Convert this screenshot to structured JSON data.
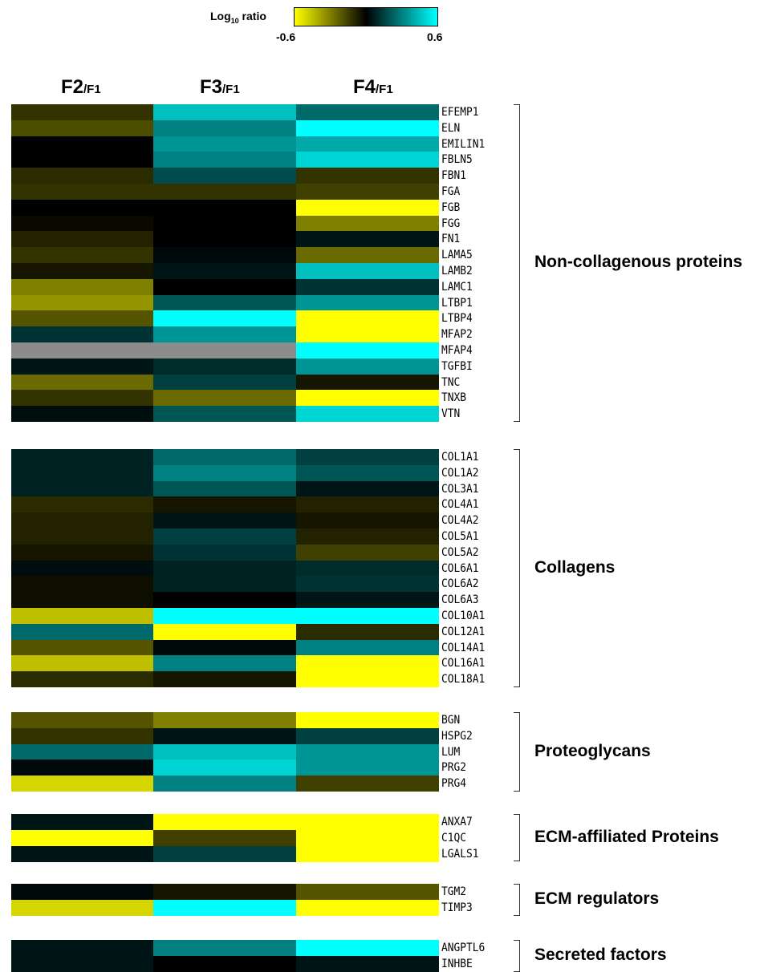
{
  "legend": {
    "title_main": "Log",
    "title_sub": "10",
    "title_rest": " ratio",
    "min_label": "-0.6",
    "max_label": "0.6",
    "colors": {
      "low": "#ffff00",
      "mid": "#000000",
      "high": "#00ffff",
      "missing": "#8c8c8c"
    }
  },
  "chart_data": {
    "type": "heatmap",
    "value_range": [
      -0.6,
      0.6
    ],
    "columns": [
      {
        "main": "F2",
        "sub": "/F1"
      },
      {
        "main": "F3",
        "sub": "/F1"
      },
      {
        "main": "F4",
        "sub": "/F1"
      }
    ],
    "groups": [
      {
        "name": "Non-collagenous proteins",
        "rows": [
          {
            "gene": "EFEMP1",
            "values": [
              -0.12,
              0.45,
              0.25
            ]
          },
          {
            "gene": "ELN",
            "values": [
              -0.18,
              0.3,
              0.6
            ]
          },
          {
            "gene": "EMILIN1",
            "values": [
              0.0,
              0.35,
              0.4
            ]
          },
          {
            "gene": "FBLN5",
            "values": [
              0.0,
              0.3,
              0.5
            ]
          },
          {
            "gene": "FBN1",
            "values": [
              -0.1,
              0.18,
              -0.12
            ]
          },
          {
            "gene": "FGA",
            "values": [
              -0.12,
              -0.12,
              -0.15
            ]
          },
          {
            "gene": "FGB",
            "values": [
              0.0,
              0.0,
              -0.6
            ]
          },
          {
            "gene": "FGG",
            "values": [
              -0.02,
              0.0,
              -0.3
            ]
          },
          {
            "gene": "FN1",
            "values": [
              -0.08,
              0.0,
              0.05
            ]
          },
          {
            "gene": "LAMA5",
            "values": [
              -0.12,
              0.02,
              -0.25
            ]
          },
          {
            "gene": "LAMB2",
            "values": [
              -0.05,
              0.05,
              0.45
            ]
          },
          {
            "gene": "LAMC1",
            "values": [
              -0.3,
              0.0,
              0.12
            ]
          },
          {
            "gene": "LTBP1",
            "values": [
              -0.35,
              0.2,
              0.35
            ]
          },
          {
            "gene": "LTBP4",
            "values": [
              -0.2,
              0.6,
              -0.6
            ]
          },
          {
            "gene": "MFAP2",
            "values": [
              0.12,
              0.35,
              -0.6
            ]
          },
          {
            "gene": "MFAP4",
            "values": [
              null,
              null,
              0.6
            ]
          },
          {
            "gene": "TGFBI",
            "values": [
              0.05,
              0.1,
              0.35
            ]
          },
          {
            "gene": "TNC",
            "values": [
              -0.25,
              0.15,
              -0.05
            ]
          },
          {
            "gene": "TNXB",
            "values": [
              -0.12,
              -0.25,
              -0.6
            ]
          },
          {
            "gene": "VTN",
            "values": [
              0.03,
              0.2,
              0.5
            ]
          }
        ]
      },
      {
        "name": "Collagens",
        "rows": [
          {
            "gene": "COL1A1",
            "values": [
              0.08,
              0.25,
              0.15
            ]
          },
          {
            "gene": "COL1A2",
            "values": [
              0.08,
              0.3,
              0.2
            ]
          },
          {
            "gene": "COL3A1",
            "values": [
              0.08,
              0.2,
              0.05
            ]
          },
          {
            "gene": "COL4A1",
            "values": [
              -0.1,
              -0.05,
              -0.08
            ]
          },
          {
            "gene": "COL4A2",
            "values": [
              -0.08,
              0.05,
              -0.05
            ]
          },
          {
            "gene": "COL5A1",
            "values": [
              -0.08,
              0.15,
              -0.08
            ]
          },
          {
            "gene": "COL5A2",
            "values": [
              -0.05,
              0.12,
              -0.15
            ]
          },
          {
            "gene": "COL6A1",
            "values": [
              0.03,
              0.08,
              0.1
            ]
          },
          {
            "gene": "COL6A2",
            "values": [
              -0.03,
              0.08,
              0.12
            ]
          },
          {
            "gene": "COL6A3",
            "values": [
              -0.03,
              0.0,
              0.05
            ]
          },
          {
            "gene": "COL10A1",
            "values": [
              -0.45,
              0.6,
              0.6
            ]
          },
          {
            "gene": "COL12A1",
            "values": [
              0.25,
              -0.6,
              -0.1
            ]
          },
          {
            "gene": "COL14A1",
            "values": [
              -0.2,
              0.02,
              0.3
            ]
          },
          {
            "gene": "COL16A1",
            "values": [
              -0.45,
              0.3,
              -0.6
            ]
          },
          {
            "gene": "COL18A1",
            "values": [
              -0.1,
              -0.05,
              -0.6
            ]
          }
        ]
      },
      {
        "name": "Proteoglycans",
        "rows": [
          {
            "gene": "BGN",
            "values": [
              -0.2,
              -0.3,
              -0.6
            ]
          },
          {
            "gene": "HSPG2",
            "values": [
              -0.12,
              0.05,
              0.15
            ]
          },
          {
            "gene": "LUM",
            "values": [
              0.25,
              0.45,
              0.35
            ]
          },
          {
            "gene": "PRG2",
            "values": [
              0.02,
              0.5,
              0.35
            ]
          },
          {
            "gene": "PRG4",
            "values": [
              -0.5,
              0.3,
              -0.15
            ]
          }
        ]
      },
      {
        "name": "ECM-affiliated Proteins",
        "rows": [
          {
            "gene": "ANXA7",
            "values": [
              0.05,
              -0.6,
              -0.6
            ]
          },
          {
            "gene": "C1QC",
            "values": [
              -0.6,
              -0.15,
              -0.6
            ]
          },
          {
            "gene": "LGALS1",
            "values": [
              0.05,
              0.15,
              -0.6
            ]
          }
        ]
      },
      {
        "name": "ECM regulators",
        "rows": [
          {
            "gene": "TGM2",
            "values": [
              0.02,
              -0.05,
              -0.2
            ]
          },
          {
            "gene": "TIMP3",
            "values": [
              -0.5,
              0.6,
              -0.6
            ]
          }
        ]
      },
      {
        "name": "Secreted factors",
        "rows": [
          {
            "gene": "ANGPTL6",
            "values": [
              0.05,
              0.3,
              0.6
            ]
          },
          {
            "gene": "INHBE",
            "values": [
              0.05,
              0.0,
              0.05
            ]
          }
        ]
      }
    ]
  }
}
